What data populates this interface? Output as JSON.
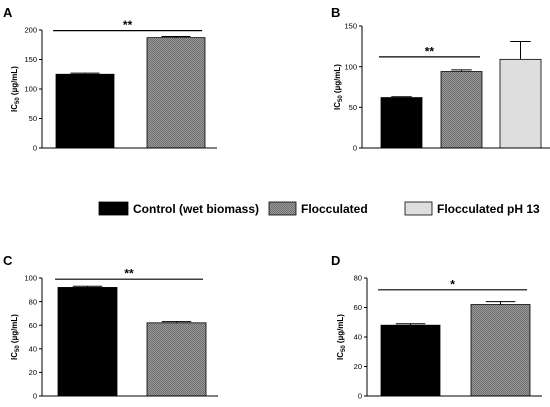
{
  "colors": {
    "control": "#000000",
    "flocculated": "#8c8c8c",
    "flocculated_ph13": "#dedede",
    "axis": "#000000"
  },
  "legend": {
    "placement": "center",
    "items": [
      {
        "label": "Control (wet biomass)",
        "color": "#000000"
      },
      {
        "label": "Flocculated",
        "color": "#8c8c8c"
      },
      {
        "label": "Flocculated pH 13",
        "color": "#dedede"
      }
    ]
  },
  "chart_data": [
    {
      "panel": "A",
      "type": "bar",
      "ylabel": "IC50 (µg/mL)",
      "ylim": [
        0,
        200
      ],
      "yticks": [
        0,
        50,
        100,
        150,
        200
      ],
      "categories": [
        "Control (wet biomass)",
        "Flocculated"
      ],
      "values": [
        125,
        187
      ],
      "errors": [
        2,
        2
      ],
      "colors": [
        "#000000",
        "#8c8c8c"
      ],
      "significance": [
        {
          "from": 0,
          "to": 1,
          "label": "**",
          "y": 199
        }
      ]
    },
    {
      "panel": "B",
      "type": "bar",
      "ylabel": "IC50 (µg/mL)",
      "ylim": [
        0,
        150
      ],
      "yticks": [
        0,
        50,
        100,
        150
      ],
      "categories": [
        "Control (wet biomass)",
        "Flocculated",
        "Flocculated pH 13"
      ],
      "values": [
        62,
        94,
        109
      ],
      "errors": [
        1,
        2,
        22
      ],
      "colors": [
        "#000000",
        "#8c8c8c",
        "#dedede"
      ],
      "significance": [
        {
          "from": 0,
          "to": 1,
          "label": "**",
          "y": 112
        }
      ]
    },
    {
      "panel": "C",
      "type": "bar",
      "ylabel": "IC50 (µg/mL)",
      "ylim": [
        0,
        100
      ],
      "yticks": [
        0,
        20,
        40,
        60,
        80,
        100
      ],
      "categories": [
        "Control (wet biomass)",
        "Flocculated"
      ],
      "values": [
        92,
        62
      ],
      "errors": [
        1,
        1
      ],
      "colors": [
        "#000000",
        "#8c8c8c"
      ],
      "significance": [
        {
          "from": 0,
          "to": 1,
          "label": "**",
          "y": 99
        }
      ]
    },
    {
      "panel": "D",
      "type": "bar",
      "ylabel": "IC50 (µg/mL)",
      "ylim": [
        0,
        80
      ],
      "yticks": [
        0,
        20,
        40,
        60,
        80
      ],
      "categories": [
        "Control (wet biomass)",
        "Flocculated"
      ],
      "values": [
        48,
        62
      ],
      "errors": [
        1,
        2
      ],
      "colors": [
        "#000000",
        "#8c8c8c"
      ],
      "significance": [
        {
          "from": 0,
          "to": 1,
          "label": "*",
          "y": 72
        }
      ]
    }
  ]
}
